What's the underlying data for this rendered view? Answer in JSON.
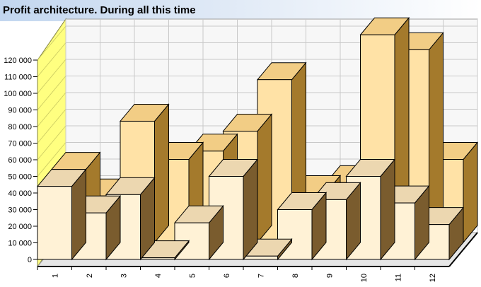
{
  "header": {
    "title": "Profit architecture. During all this time"
  },
  "colors": {
    "front_series": "#fff2d6",
    "back_series": "#ffe2a6",
    "top_front": "#ecd7b0",
    "top_back": "#f2cd85",
    "side_front": "#7a5c2e",
    "side_back": "#a47a2c",
    "wall": "#ffff80",
    "grid": "#c8c8c8"
  },
  "chart_data": {
    "type": "bar",
    "title": "Profit architecture. During all this time",
    "xlabel": "",
    "ylabel": "",
    "ylim": [
      0,
      120000
    ],
    "yticks": [
      0,
      10000,
      20000,
      30000,
      40000,
      50000,
      60000,
      70000,
      80000,
      90000,
      100000,
      110000,
      120000
    ],
    "ytick_labels": [
      "0",
      "10 000",
      "20 000",
      "30 000",
      "40 000",
      "50 000",
      "60 000",
      "70 000",
      "80 000",
      "90 000",
      "100 000",
      "110 000",
      "120 000"
    ],
    "categories": [
      "1",
      "2",
      "3",
      "4",
      "5",
      "6",
      "7",
      "8",
      "9",
      "10",
      "11",
      "12"
    ],
    "series": [
      {
        "values": [
          44000,
          28000,
          39000,
          1000,
          22000,
          50000,
          2000,
          30000,
          36000,
          50000,
          34000,
          21000
        ]
      },
      {
        "values": [
          44000,
          28000,
          73000,
          50000,
          55000,
          67000,
          98000,
          30000,
          36000,
          125000,
          116000,
          50000
        ]
      }
    ],
    "grid": true,
    "legend": "none",
    "style": "3d-bars"
  }
}
